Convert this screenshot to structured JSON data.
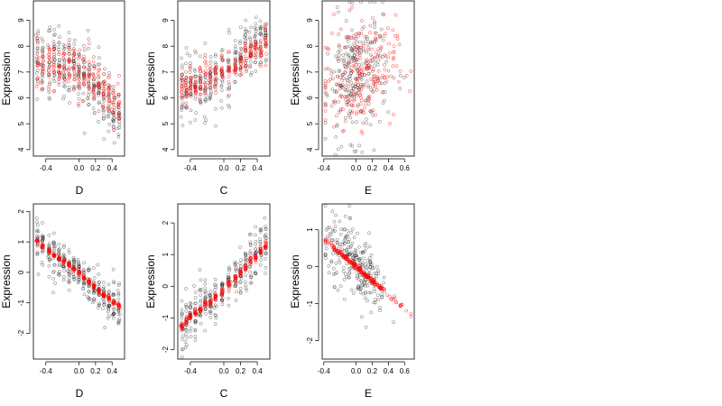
{
  "chart_data": [
    {
      "type": "scatter",
      "xlabel": "D",
      "ylabel": "Expression",
      "xlim": [
        -0.55,
        0.55
      ],
      "ylim": [
        3.75,
        9.75
      ],
      "xticks": [
        -0.4,
        0.0,
        0.2,
        0.4
      ],
      "xtick_labels": [
        "-0.4",
        "0.0",
        "0.2",
        "0.4"
      ],
      "yticks": [
        4,
        5,
        6,
        7,
        8,
        9
      ],
      "ytick_labels": [
        "4",
        "5",
        "6",
        "7",
        "8",
        "9"
      ],
      "x_values": [
        -0.5,
        -0.44,
        -0.36,
        -0.3,
        -0.24,
        -0.18,
        -0.12,
        -0.06,
        0.0,
        0.06,
        0.12,
        0.18,
        0.24,
        0.3,
        0.36,
        0.42,
        0.48
      ],
      "series": [
        {
          "color": "#000000",
          "center": [
            7.6,
            7.5,
            7.5,
            7.4,
            7.3,
            7.2,
            7.3,
            7.1,
            7.0,
            6.9,
            6.7,
            6.5,
            6.3,
            6.0,
            5.9,
            5.4,
            5.3
          ],
          "spread": [
            1.6,
            1.4,
            1.5,
            1.4,
            1.4,
            1.3,
            1.3,
            1.5,
            1.2,
            1.3,
            1.4,
            1.2,
            1.2,
            1.1,
            1.2,
            1.3,
            1.0
          ]
        },
        {
          "color": "#ff0000",
          "center": [
            7.2,
            7.3,
            7.3,
            7.3,
            7.2,
            7.2,
            7.1,
            7.1,
            7.1,
            7.0,
            6.9,
            6.7,
            6.5,
            6.4,
            6.2,
            5.8,
            5.6
          ],
          "spread": [
            1.1,
            1.0,
            1.1,
            1.0,
            1.0,
            1.0,
            1.0,
            1.0,
            1.0,
            1.0,
            1.0,
            0.9,
            0.9,
            0.8,
            0.9,
            0.9,
            0.8
          ]
        }
      ]
    },
    {
      "type": "scatter",
      "xlabel": "C",
      "ylabel": "Expression",
      "xlim": [
        -0.55,
        0.55
      ],
      "ylim": [
        3.75,
        9.75
      ],
      "xticks": [
        -0.4,
        0.0,
        0.2,
        0.4
      ],
      "xtick_labels": [
        "-0.4",
        "0.0",
        "0.2",
        "0.4"
      ],
      "yticks": [
        4,
        5,
        6,
        7,
        8,
        9
      ],
      "ytick_labels": [
        "4",
        "5",
        "6",
        "7",
        "8",
        "9"
      ],
      "x_values": [
        -0.5,
        -0.45,
        -0.4,
        -0.34,
        -0.28,
        -0.22,
        -0.16,
        -0.1,
        -0.02,
        0.06,
        0.14,
        0.2,
        0.26,
        0.32,
        0.38,
        0.44,
        0.5
      ],
      "series": [
        {
          "color": "#000000",
          "center": [
            6.2,
            6.3,
            6.4,
            6.6,
            6.5,
            6.4,
            6.7,
            6.8,
            6.9,
            7.2,
            7.2,
            7.5,
            7.7,
            7.8,
            8.0,
            8.1,
            8.3
          ],
          "spread": [
            1.6,
            1.4,
            1.3,
            1.4,
            1.3,
            1.6,
            1.2,
            1.3,
            1.2,
            1.2,
            1.1,
            1.2,
            1.1,
            1.0,
            1.0,
            0.9,
            0.8
          ]
        },
        {
          "color": "#ff0000",
          "center": [
            6.4,
            6.4,
            6.5,
            6.5,
            6.7,
            6.8,
            6.8,
            6.9,
            7.0,
            7.0,
            7.2,
            7.4,
            7.6,
            7.8,
            8.0,
            8.0,
            8.2
          ],
          "spread": [
            0.7,
            0.7,
            0.6,
            0.6,
            0.7,
            0.7,
            0.6,
            0.6,
            0.6,
            0.6,
            0.6,
            0.6,
            0.6,
            0.5,
            0.5,
            0.5,
            0.5
          ]
        }
      ]
    },
    {
      "type": "scatter",
      "xlabel": "E",
      "ylabel": "Expression",
      "xlim": [
        -0.42,
        0.72
      ],
      "ylim": [
        3.75,
        9.75
      ],
      "xticks": [
        -0.4,
        0.0,
        0.2,
        0.4,
        0.6
      ],
      "xtick_labels": [
        "-0.4",
        "0.0",
        "0.2",
        "0.4",
        "0.6"
      ],
      "yticks": [
        4,
        5,
        6,
        7,
        8,
        9
      ],
      "ytick_labels": [
        "4",
        "5",
        "6",
        "7",
        "8",
        "9"
      ],
      "x_range": [
        -0.38,
        0.68
      ],
      "series": [
        {
          "color": "#000000",
          "center_line": [
            6.8,
            0.8
          ],
          "x_center": 0.0,
          "x_spread": 0.2,
          "spread": 1.2
        },
        {
          "color": "#ff0000",
          "center_line": [
            6.9,
            0.6
          ],
          "x_center": 0.05,
          "x_spread": 0.22,
          "spread": 1.0
        }
      ]
    },
    {
      "type": "scatter",
      "xlabel": "D",
      "ylabel": "Expression",
      "xlim": [
        -0.55,
        0.55
      ],
      "ylim": [
        -2.85,
        2.25
      ],
      "xticks": [
        -0.4,
        0.0,
        0.2,
        0.4
      ],
      "xtick_labels": [
        "-0.4",
        "0.0",
        "0.2",
        "0.4"
      ],
      "yticks": [
        -2,
        -1,
        0,
        1,
        2
      ],
      "ytick_labels": [
        "-2",
        "-1",
        "0",
        "1",
        "2"
      ],
      "x_values": [
        -0.5,
        -0.44,
        -0.36,
        -0.3,
        -0.24,
        -0.18,
        -0.12,
        -0.06,
        0.0,
        0.06,
        0.12,
        0.18,
        0.24,
        0.3,
        0.36,
        0.42,
        0.48
      ],
      "series": [
        {
          "color": "#000000",
          "center": [
            1.1,
            0.9,
            0.7,
            0.5,
            0.4,
            0.3,
            0.2,
            0.1,
            0.0,
            -0.2,
            -0.3,
            -0.5,
            -0.6,
            -0.8,
            -0.9,
            -1.0,
            -1.2
          ],
          "spread": [
            0.9,
            0.7,
            0.7,
            0.7,
            0.6,
            0.6,
            0.6,
            0.6,
            0.6,
            0.6,
            0.6,
            0.6,
            0.6,
            0.6,
            0.7,
            0.8,
            0.7
          ]
        },
        {
          "color": "#ff0000",
          "center": [
            1.05,
            0.85,
            0.7,
            0.55,
            0.45,
            0.35,
            0.25,
            0.1,
            0.0,
            -0.15,
            -0.3,
            -0.45,
            -0.6,
            -0.75,
            -0.85,
            -1.0,
            -1.1
          ],
          "spread": [
            0.08,
            0.08,
            0.08,
            0.08,
            0.08,
            0.08,
            0.08,
            0.08,
            0.08,
            0.08,
            0.08,
            0.08,
            0.08,
            0.08,
            0.08,
            0.08,
            0.08
          ]
        }
      ]
    },
    {
      "type": "scatter",
      "xlabel": "C",
      "ylabel": "Expression",
      "xlim": [
        -0.55,
        0.55
      ],
      "ylim": [
        -2.3,
        2.6
      ],
      "xticks": [
        -0.4,
        0.0,
        0.2,
        0.4
      ],
      "xtick_labels": [
        "-0.4",
        "0.0",
        "0.2",
        "0.4"
      ],
      "yticks": [
        -2,
        -1,
        0,
        1,
        2
      ],
      "ytick_labels": [
        "-2",
        "-1",
        "0",
        "1",
        "2"
      ],
      "x_values": [
        -0.5,
        -0.45,
        -0.4,
        -0.34,
        -0.28,
        -0.22,
        -0.16,
        -0.1,
        -0.02,
        0.06,
        0.14,
        0.2,
        0.26,
        0.32,
        0.38,
        0.44,
        0.5
      ],
      "series": [
        {
          "color": "#000000",
          "center": [
            -1.3,
            -1.2,
            -1.0,
            -0.9,
            -0.8,
            -0.6,
            -0.5,
            -0.4,
            -0.2,
            0.0,
            0.2,
            0.4,
            0.6,
            0.8,
            1.0,
            1.2,
            1.4
          ],
          "spread": [
            0.9,
            0.8,
            0.8,
            0.8,
            0.8,
            0.8,
            0.7,
            0.7,
            0.7,
            0.7,
            0.7,
            0.7,
            0.7,
            0.7,
            0.8,
            0.8,
            0.9
          ]
        },
        {
          "color": "#ff0000",
          "center": [
            -1.25,
            -1.1,
            -0.95,
            -0.85,
            -0.7,
            -0.55,
            -0.5,
            -0.35,
            -0.2,
            0.05,
            0.25,
            0.4,
            0.6,
            0.8,
            0.9,
            1.1,
            1.3
          ],
          "spread": [
            0.12,
            0.12,
            0.12,
            0.12,
            0.12,
            0.12,
            0.12,
            0.12,
            0.12,
            0.12,
            0.12,
            0.12,
            0.12,
            0.12,
            0.12,
            0.12,
            0.12
          ]
        }
      ]
    },
    {
      "type": "scatter",
      "xlabel": "E",
      "ylabel": "Expression",
      "xlim": [
        -0.42,
        0.72
      ],
      "ylim": [
        -2.5,
        1.7
      ],
      "xticks": [
        -0.4,
        0.0,
        0.2,
        0.4,
        0.6
      ],
      "xtick_labels": [
        "-0.4",
        "0.0",
        "0.2",
        "0.4",
        "0.6"
      ],
      "yticks": [
        -2,
        -1,
        0,
        1
      ],
      "ytick_labels": [
        "-2",
        "-1",
        "0",
        "1"
      ],
      "x_range": [
        -0.38,
        0.68
      ],
      "series": [
        {
          "color": "#000000",
          "center_line": [
            0.0,
            -1.9
          ],
          "x_center": 0.0,
          "x_spread": 0.2,
          "spread": 0.45
        },
        {
          "color": "#ff0000",
          "center_line": [
            0.0,
            -1.9
          ],
          "x_center": 0.05,
          "x_spread": 0.22,
          "spread": 0.03
        }
      ]
    }
  ]
}
